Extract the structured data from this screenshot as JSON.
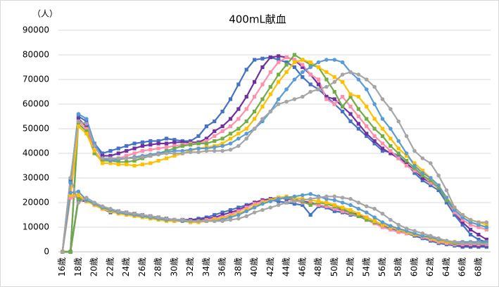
{
  "chart_data": {
    "type": "line",
    "title": "400mL献血",
    "y_unit_label": "（人）",
    "categories": [
      "16歳",
      null,
      "18歳",
      null,
      "20歳",
      null,
      "22歳",
      null,
      "24歳",
      null,
      "26歳",
      null,
      "28歳",
      null,
      "30歳",
      null,
      "32歳",
      null,
      "34歳",
      null,
      "36歳",
      null,
      "38歳",
      null,
      "40歳",
      null,
      "42歳",
      null,
      "44歳",
      null,
      "46歳",
      null,
      "48歳",
      null,
      "50歳",
      null,
      "52歳",
      null,
      "54歳",
      null,
      "56歳",
      null,
      "58歳",
      null,
      "60歳",
      null,
      "62歳",
      null,
      "64歳",
      null,
      "66歳",
      null,
      "68歳",
      null
    ],
    "ylim": [
      0,
      90000
    ],
    "yticks": [
      0,
      10000,
      20000,
      30000,
      40000,
      50000,
      60000,
      70000,
      80000,
      90000
    ],
    "grid": true,
    "series": [
      {
        "color": "#4472c4",
        "marker": "square",
        "values": [
          0,
          29000,
          55000,
          53000,
          44000,
          40000,
          41000,
          42000,
          43000,
          44000,
          44500,
          45000,
          45000,
          46000,
          45500,
          45000,
          45000,
          47000,
          51000,
          53000,
          57000,
          62000,
          68000,
          74000,
          78000,
          78500,
          79000,
          78000,
          77000,
          75000,
          71000,
          68000,
          66000,
          63000,
          60000,
          57000,
          53000,
          50000,
          47000,
          44000,
          41000,
          40500,
          39000,
          36000,
          32000,
          29000,
          27000,
          25000,
          20000,
          15000,
          11000,
          7000,
          5000,
          4000
        ]
      },
      {
        "color": "#7030a0",
        "marker": "square",
        "values": [
          0,
          0,
          54000,
          51000,
          43000,
          39000,
          39000,
          40000,
          41000,
          42000,
          43000,
          43500,
          44000,
          44000,
          44500,
          44500,
          44500,
          44500,
          46000,
          49000,
          51000,
          54000,
          58000,
          63000,
          69000,
          75000,
          79000,
          79500,
          79000,
          78000,
          75000,
          72000,
          68000,
          63000,
          62000,
          59000,
          56000,
          52000,
          48000,
          45000,
          42000,
          40000,
          38000,
          36000,
          33000,
          30000,
          28000,
          26000,
          21000,
          16000,
          12000,
          9000,
          7000,
          5000
        ]
      },
      {
        "color": "#ff8fab",
        "marker": "square",
        "values": [
          0,
          24000,
          53000,
          50000,
          41000,
          37000,
          37500,
          38000,
          39000,
          40000,
          41000,
          41500,
          42000,
          42500,
          43000,
          43500,
          44000,
          44000,
          45000,
          47000,
          49000,
          51000,
          54000,
          58000,
          63000,
          68000,
          73000,
          77000,
          79000,
          78000,
          76000,
          72000,
          70000,
          62000,
          60000,
          63000,
          59000,
          55000,
          51000,
          47000,
          44000,
          41000,
          38000,
          35000,
          33000,
          31000,
          28000,
          26000,
          21000,
          16000,
          13000,
          11000,
          10000,
          9000
        ]
      },
      {
        "color": "#70ad47",
        "marker": "square",
        "values": [
          0,
          0,
          52000,
          49000,
          40000,
          37000,
          37000,
          36500,
          36500,
          37000,
          38000,
          39000,
          40000,
          41000,
          42000,
          43000,
          43500,
          44000,
          44000,
          45000,
          46000,
          48000,
          50000,
          53000,
          57000,
          62000,
          67000,
          72000,
          76000,
          80000,
          78000,
          76000,
          75000,
          70000,
          65000,
          59000,
          63000,
          58000,
          54000,
          50000,
          47000,
          43000,
          40000,
          37000,
          34000,
          31000,
          29000,
          26000,
          21000,
          17000,
          14000,
          12000,
          11000,
          10000
        ]
      },
      {
        "color": "#ffc000",
        "marker": "square",
        "values": [
          0,
          22000,
          51000,
          48000,
          41000,
          36000,
          36000,
          35500,
          35500,
          35000,
          35500,
          36000,
          37000,
          38000,
          39000,
          40000,
          41000,
          42000,
          42500,
          43000,
          44000,
          46000,
          48000,
          50000,
          54000,
          59000,
          64000,
          69000,
          73000,
          77000,
          78000,
          77000,
          75000,
          73000,
          71000,
          69000,
          64000,
          63000,
          59000,
          54000,
          50000,
          46000,
          42000,
          39000,
          36000,
          33000,
          30000,
          27000,
          22000,
          18000,
          15000,
          13000,
          12000,
          11000
        ]
      },
      {
        "color": "#5b9bd5",
        "marker": "circle",
        "values": [
          0,
          28000,
          56000,
          54000,
          44000,
          38000,
          37000,
          37500,
          38000,
          38500,
          39000,
          39500,
          40000,
          40500,
          41000,
          41000,
          41500,
          42000,
          42000,
          42500,
          43000,
          44000,
          46000,
          48000,
          50000,
          53000,
          57000,
          62000,
          66000,
          70000,
          73000,
          75000,
          77000,
          78000,
          78000,
          77000,
          73000,
          70000,
          66000,
          60000,
          54000,
          50000,
          45000,
          40000,
          35000,
          32000,
          30000,
          27000,
          22000,
          17000,
          14000,
          12000,
          11000,
          10000
        ]
      },
      {
        "color": "#a5a5a5",
        "marker": "circle",
        "values": [
          0,
          30000,
          53000,
          52000,
          43000,
          38000,
          38000,
          38000,
          38000,
          38000,
          38500,
          39000,
          39500,
          40000,
          40000,
          40000,
          40500,
          40500,
          41000,
          41000,
          41000,
          41500,
          43000,
          46000,
          50000,
          54000,
          57000,
          60000,
          61000,
          62000,
          63000,
          65000,
          66000,
          67000,
          69000,
          72000,
          73000,
          72000,
          70000,
          67000,
          62000,
          58000,
          53000,
          47000,
          41000,
          38000,
          36000,
          31000,
          25000,
          18000,
          15000,
          13000,
          12000,
          12000
        ]
      },
      {
        "color": "#4472c4",
        "marker": "square",
        "values": [
          0,
          0,
          22000,
          21000,
          19000,
          17500,
          16000,
          16000,
          15500,
          15000,
          14500,
          14000,
          13500,
          13500,
          13000,
          13000,
          13000,
          13500,
          14000,
          15000,
          16000,
          17000,
          18000,
          19000,
          20000,
          21000,
          21000,
          20500,
          20000,
          19500,
          19000,
          15000,
          18500,
          18000,
          16500,
          16000,
          15000,
          14500,
          13000,
          12000,
          10500,
          9500,
          8500,
          7500,
          6500,
          5500,
          4500,
          3500,
          3000,
          2500,
          2000,
          2000,
          2000,
          2000
        ]
      },
      {
        "color": "#7030a0",
        "marker": "square",
        "values": [
          0,
          0,
          21000,
          20500,
          19500,
          18000,
          17000,
          16500,
          16000,
          15500,
          15000,
          14500,
          14000,
          13500,
          13000,
          13000,
          13000,
          13000,
          13500,
          14000,
          15000,
          16000,
          17000,
          18500,
          20000,
          21000,
          21500,
          22000,
          21500,
          21000,
          20500,
          20000,
          19000,
          18500,
          17500,
          17000,
          16000,
          15000,
          14000,
          12500,
          11000,
          10000,
          9000,
          8000,
          7000,
          6000,
          5000,
          4000,
          3500,
          3000,
          2500,
          2500,
          2500,
          2500
        ]
      },
      {
        "color": "#ff8fab",
        "marker": "square",
        "values": [
          0,
          22000,
          22500,
          21000,
          19000,
          17500,
          16500,
          16000,
          15500,
          15000,
          14500,
          14000,
          13500,
          13000,
          13000,
          12500,
          12500,
          12500,
          13000,
          13500,
          14000,
          15000,
          16500,
          18000,
          19500,
          20500,
          21000,
          21500,
          22000,
          21000,
          20000,
          19500,
          19000,
          18500,
          17500,
          16500,
          15500,
          14500,
          13000,
          11500,
          10000,
          9000,
          8000,
          7500,
          7000,
          6000,
          5000,
          4000,
          3500,
          3000,
          3000,
          3000,
          3000,
          3000
        ]
      },
      {
        "color": "#70ad47",
        "marker": "square",
        "values": [
          0,
          0,
          21500,
          21000,
          19500,
          18000,
          17000,
          16000,
          15500,
          15000,
          14500,
          14000,
          13500,
          13000,
          12500,
          12500,
          12500,
          12500,
          12500,
          13000,
          13500,
          14500,
          15500,
          17000,
          18500,
          20000,
          21000,
          21500,
          22000,
          21500,
          20500,
          19000,
          20000,
          19500,
          18500,
          17500,
          16000,
          14500,
          13000,
          12000,
          11000,
          10000,
          9000,
          8000,
          7000,
          6500,
          5500,
          4500,
          4000,
          3500,
          3500,
          3500,
          3500,
          3500
        ]
      },
      {
        "color": "#ffc000",
        "marker": "square",
        "values": [
          0,
          23000,
          23000,
          20500,
          19000,
          17500,
          16500,
          15500,
          15000,
          14500,
          14000,
          13500,
          13000,
          12500,
          12500,
          12500,
          12000,
          12000,
          12500,
          13000,
          13500,
          14500,
          15500,
          17000,
          18500,
          20000,
          21000,
          22000,
          22500,
          22000,
          21500,
          21000,
          20500,
          20000,
          19000,
          18000,
          17000,
          15500,
          14000,
          12500,
          11000,
          10000,
          9000,
          8000,
          7000,
          6500,
          5500,
          4500,
          4000,
          4000,
          4000,
          4000,
          4000,
          4000
        ]
      },
      {
        "color": "#5b9bd5",
        "marker": "circle",
        "values": [
          0,
          24000,
          24500,
          21000,
          19500,
          18000,
          17000,
          16000,
          15500,
          15000,
          14500,
          14000,
          13500,
          13000,
          13000,
          12500,
          12500,
          12500,
          12500,
          12500,
          13000,
          14000,
          15000,
          16500,
          18000,
          19500,
          20500,
          21500,
          22000,
          22500,
          23000,
          23500,
          22500,
          21500,
          21000,
          20000,
          19000,
          17500,
          16000,
          14000,
          12000,
          10500,
          9500,
          8500,
          7500,
          6500,
          6000,
          5000,
          4500,
          4000,
          4000,
          4000,
          4000,
          4000
        ]
      },
      {
        "color": "#a5a5a5",
        "marker": "circle",
        "values": [
          0,
          30000,
          20000,
          22000,
          20000,
          18500,
          17500,
          16500,
          16000,
          15500,
          15000,
          14500,
          14000,
          13500,
          13000,
          13000,
          12500,
          12500,
          12500,
          12500,
          12500,
          13000,
          13500,
          14500,
          16000,
          17000,
          18000,
          19000,
          20000,
          20500,
          21000,
          21500,
          22000,
          22500,
          22500,
          22000,
          21500,
          20000,
          18500,
          17500,
          15500,
          13000,
          11000,
          9500,
          8500,
          7500,
          6500,
          5500,
          4500,
          4000,
          3500,
          3500,
          3500,
          3000
        ]
      }
    ]
  }
}
